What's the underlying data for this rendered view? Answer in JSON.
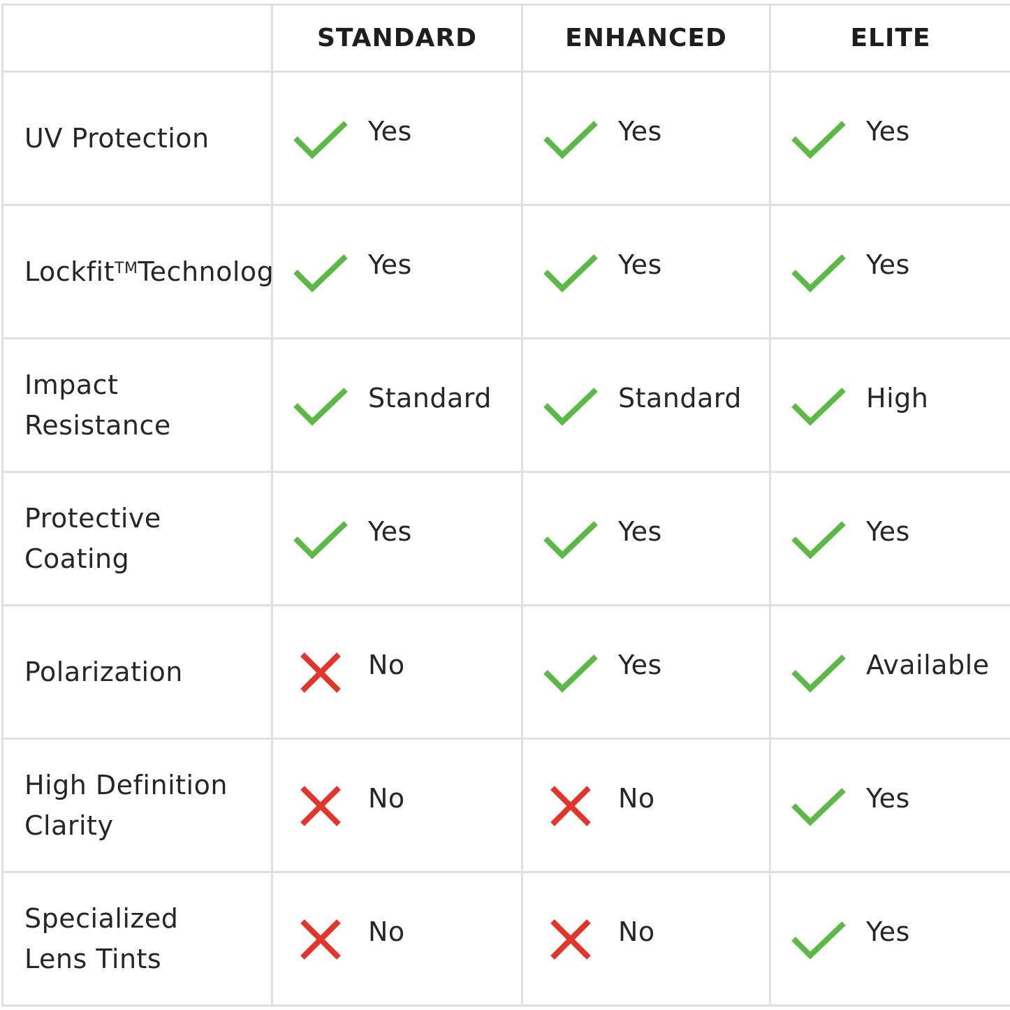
{
  "colors": {
    "check": "#5cb946",
    "cross": "#e2352b",
    "border": "#e0e0e0",
    "text": "#262626"
  },
  "columns": [
    "STANDARD",
    "ENHANCED",
    "ELITE"
  ],
  "rows": [
    {
      "feature": "UV Protection",
      "values": [
        {
          "icon": "check-icon",
          "text": "Yes"
        },
        {
          "icon": "check-icon",
          "text": "Yes"
        },
        {
          "icon": "check-icon",
          "text": "Yes"
        }
      ]
    },
    {
      "feature": "Lockfit",
      "feature_sup": "TM",
      "feature_line2": "Technology",
      "values": [
        {
          "icon": "check-icon",
          "text": "Yes"
        },
        {
          "icon": "check-icon",
          "text": "Yes"
        },
        {
          "icon": "check-icon",
          "text": "Yes"
        }
      ]
    },
    {
      "feature": "Impact\nResistance",
      "values": [
        {
          "icon": "check-icon",
          "text": "Standard"
        },
        {
          "icon": "check-icon",
          "text": "Standard"
        },
        {
          "icon": "check-icon",
          "text": "High"
        }
      ]
    },
    {
      "feature": "Protective\nCoating",
      "values": [
        {
          "icon": "check-icon",
          "text": "Yes"
        },
        {
          "icon": "check-icon",
          "text": "Yes"
        },
        {
          "icon": "check-icon",
          "text": "Yes"
        }
      ]
    },
    {
      "feature": "Polarization",
      "values": [
        {
          "icon": "cross-icon",
          "text": "No"
        },
        {
          "icon": "check-icon",
          "text": "Yes"
        },
        {
          "icon": "check-icon",
          "text": "Available"
        }
      ]
    },
    {
      "feature": "High Definition\nClarity",
      "values": [
        {
          "icon": "cross-icon",
          "text": "No"
        },
        {
          "icon": "cross-icon",
          "text": "No"
        },
        {
          "icon": "check-icon",
          "text": "Yes"
        }
      ]
    },
    {
      "feature": "Specialized\nLens Tints",
      "values": [
        {
          "icon": "cross-icon",
          "text": "No"
        },
        {
          "icon": "cross-icon",
          "text": "No"
        },
        {
          "icon": "check-icon",
          "text": "Yes"
        }
      ]
    }
  ]
}
